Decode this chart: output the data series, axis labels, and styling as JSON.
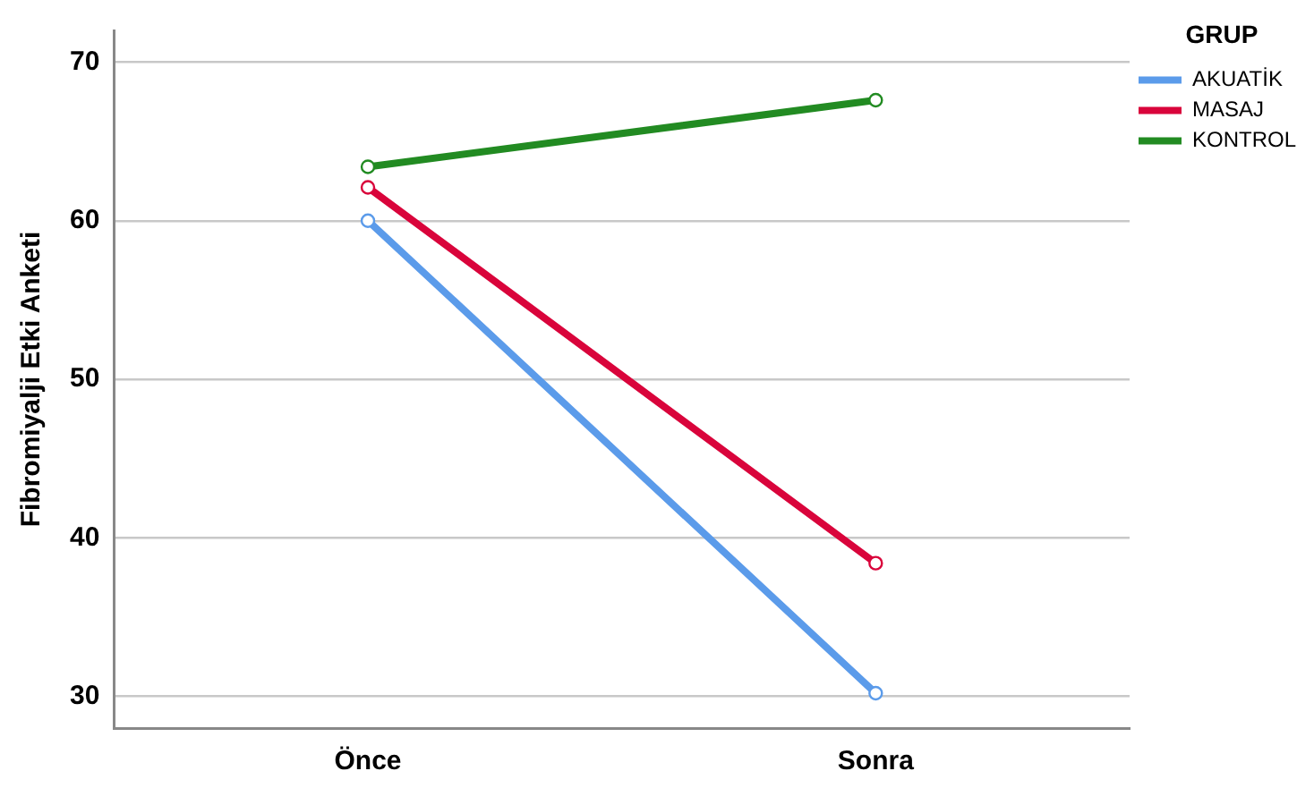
{
  "chart_data": {
    "type": "line",
    "ylabel": "Fibromiyalji Etki Anketi",
    "legend_title": "GRUP",
    "categories": [
      "Önce",
      "Sonra"
    ],
    "series": [
      {
        "name": "AKUATİK",
        "color": "#5b9bea",
        "values": [
          60.0,
          30.2
        ]
      },
      {
        "name": "MASAJ",
        "color": "#d9043b",
        "values": [
          62.1,
          38.4
        ]
      },
      {
        "name": "KONTROL",
        "color": "#228b22",
        "values": [
          63.4,
          67.6
        ]
      }
    ],
    "ylim": [
      28,
      72
    ],
    "yticks": [
      30,
      40,
      50,
      60,
      70
    ],
    "grid": "y",
    "legend": "top right",
    "marker": "circle",
    "line_style": "solid"
  }
}
